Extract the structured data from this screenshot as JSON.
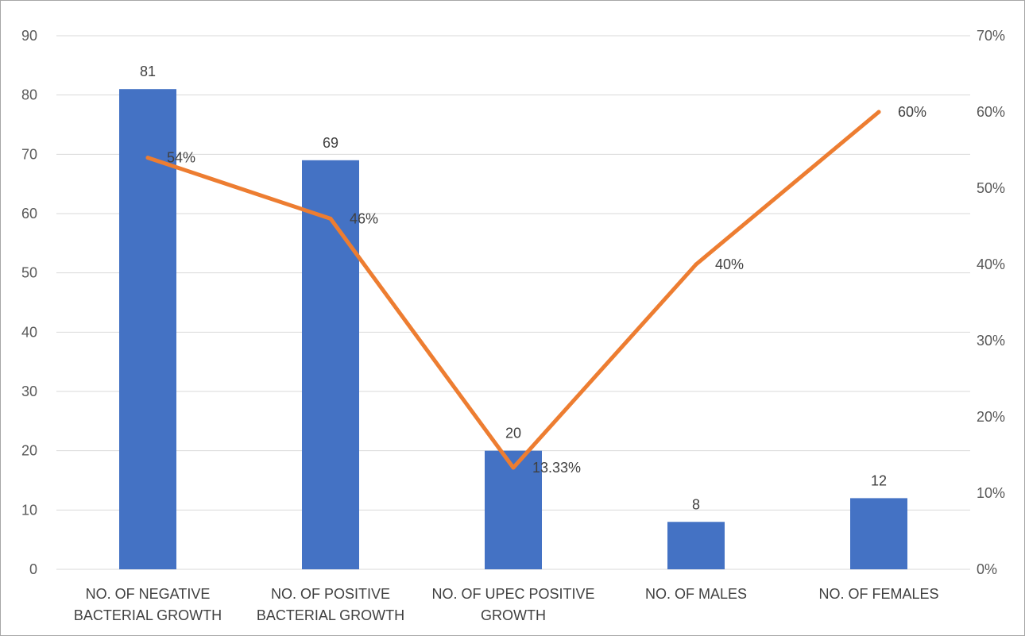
{
  "chart_data": {
    "type": "bar",
    "categories": [
      [
        "NO. OF NEGATIVE",
        "BACTERIAL GROWTH"
      ],
      [
        "NO. OF POSITIVE",
        "BACTERIAL GROWTH"
      ],
      [
        "NO. OF UPEC POSITIVE",
        "GROWTH"
      ],
      [
        "NO. OF MALES"
      ],
      [
        "NO. OF FEMALES"
      ]
    ],
    "series": [
      {
        "type": "bar",
        "axis": "left",
        "values": [
          81,
          69,
          20,
          8,
          12
        ],
        "labels": [
          "81",
          "69",
          "20",
          "8",
          "12"
        ],
        "color": "#4472c4"
      },
      {
        "type": "line",
        "axis": "right",
        "values": [
          54,
          46,
          13.33,
          40,
          60
        ],
        "labels": [
          "54%",
          "46%",
          "13.33%",
          "40%",
          "60%"
        ],
        "color": "#ed7d31"
      }
    ],
    "y_left": {
      "min": 0,
      "max": 90,
      "step": 10
    },
    "y_right": {
      "min": 0,
      "max": 70,
      "step": 10,
      "suffix": "%"
    },
    "grid": true,
    "legend": "none"
  }
}
